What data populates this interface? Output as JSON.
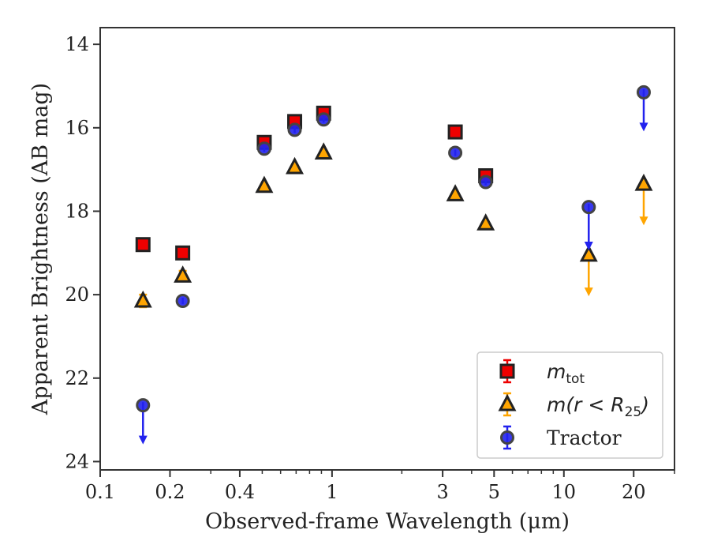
{
  "chart_data": {
    "type": "scatter",
    "title": "",
    "xlabel": "Observed-frame Wavelength (μm)",
    "ylabel": "Apparent Brightness (AB mag)",
    "xscale": "log",
    "xlim": [
      0.1,
      30
    ],
    "ylim": [
      24.2,
      13.6
    ],
    "y_inverted": true,
    "grid": false,
    "legend_position": "lower-right",
    "x_ticks": [
      {
        "value": 0.1,
        "label": "0.1"
      },
      {
        "value": 0.2,
        "label": "0.2"
      },
      {
        "value": 0.4,
        "label": "0.4"
      },
      {
        "value": 1,
        "label": "1"
      },
      {
        "value": 3,
        "label": "3"
      },
      {
        "value": 5,
        "label": "5"
      },
      {
        "value": 10,
        "label": "10"
      },
      {
        "value": 20,
        "label": "20"
      }
    ],
    "y_ticks": [
      {
        "value": 14,
        "label": "14"
      },
      {
        "value": 16,
        "label": "16"
      },
      {
        "value": 18,
        "label": "18"
      },
      {
        "value": 20,
        "label": "20"
      },
      {
        "value": 22,
        "label": "22"
      },
      {
        "value": 24,
        "label": "24"
      }
    ],
    "series": [
      {
        "name": "m_tot",
        "legend_label": "m",
        "legend_subscript": "tot",
        "marker": "square",
        "color": "#ee0000",
        "error_color": "#ee0000",
        "points": [
          {
            "x": 0.153,
            "y": 18.8
          },
          {
            "x": 0.227,
            "y": 19.0
          },
          {
            "x": 0.51,
            "y": 16.35
          },
          {
            "x": 0.69,
            "y": 15.85
          },
          {
            "x": 0.92,
            "y": 15.65
          },
          {
            "x": 3.4,
            "y": 16.1
          },
          {
            "x": 4.6,
            "y": 17.15
          }
        ]
      },
      {
        "name": "m(r < R25)",
        "legend_label": "m(r < R",
        "legend_subscript": "25",
        "legend_suffix": ")",
        "marker": "triangle",
        "color": "#ffa500",
        "error_color": "#ffa500",
        "points": [
          {
            "x": 0.153,
            "y": 20.15,
            "err": 0.15
          },
          {
            "x": 0.227,
            "y": 19.55,
            "err": 0.12
          },
          {
            "x": 0.51,
            "y": 17.4
          },
          {
            "x": 0.69,
            "y": 16.95
          },
          {
            "x": 0.92,
            "y": 16.6
          },
          {
            "x": 3.4,
            "y": 17.6
          },
          {
            "x": 4.6,
            "y": 18.3
          },
          {
            "x": 12.8,
            "y": 19.05,
            "upper_limit": true,
            "limit_to": 20.0
          },
          {
            "x": 22.1,
            "y": 17.35,
            "upper_limit": true,
            "limit_to": 18.3
          }
        ]
      },
      {
        "name": "Tractor",
        "legend_label": "Tractor",
        "marker": "circle",
        "color": "#2222ee",
        "error_color": "#2222ee",
        "points": [
          {
            "x": 0.153,
            "y": 22.65,
            "upper_limit": true,
            "limit_to": 23.55
          },
          {
            "x": 0.227,
            "y": 20.15
          },
          {
            "x": 0.51,
            "y": 16.5
          },
          {
            "x": 0.69,
            "y": 16.05
          },
          {
            "x": 0.92,
            "y": 15.8
          },
          {
            "x": 3.4,
            "y": 16.6
          },
          {
            "x": 4.6,
            "y": 17.3
          },
          {
            "x": 12.8,
            "y": 17.9,
            "upper_limit": true,
            "limit_to": 18.9
          },
          {
            "x": 22.1,
            "y": 15.15,
            "upper_limit": true,
            "limit_to": 16.05
          }
        ]
      }
    ]
  }
}
